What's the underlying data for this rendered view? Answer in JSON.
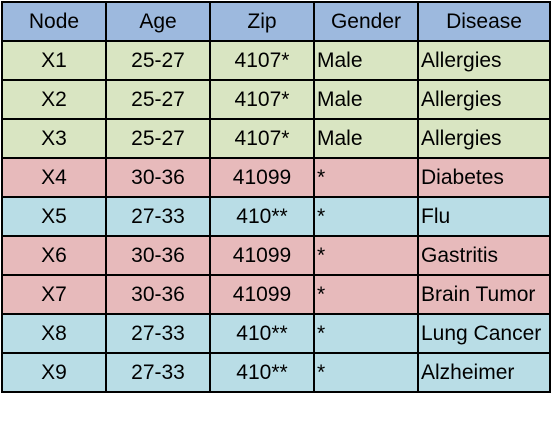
{
  "table": {
    "header_color": "#9db9de",
    "columns": [
      "Node",
      "Age",
      "Zip",
      "Gender",
      "Disease"
    ],
    "rows": [
      {
        "node": "X1",
        "age": "25-27",
        "zip": "4107*",
        "gender": "Male",
        "disease": "Allergies",
        "group": "green"
      },
      {
        "node": "X2",
        "age": "25-27",
        "zip": "4107*",
        "gender": "Male",
        "disease": "Allergies",
        "group": "green"
      },
      {
        "node": "X3",
        "age": "25-27",
        "zip": "4107*",
        "gender": "Male",
        "disease": "Allergies",
        "group": "green"
      },
      {
        "node": "X4",
        "age": "30-36",
        "zip": "41099",
        "gender": "*",
        "disease": "Diabetes",
        "group": "red"
      },
      {
        "node": "X5",
        "age": "27-33",
        "zip": "410**",
        "gender": "*",
        "disease": "Flu",
        "group": "blue"
      },
      {
        "node": "X6",
        "age": "30-36",
        "zip": "41099",
        "gender": "*",
        "disease": "Gastritis",
        "group": "red"
      },
      {
        "node": "X7",
        "age": "30-36",
        "zip": "41099",
        "gender": "*",
        "disease": "Brain Tumor",
        "group": "red"
      },
      {
        "node": "X8",
        "age": "27-33",
        "zip": "410**",
        "gender": "*",
        "disease": "Lung Cancer",
        "group": "blue"
      },
      {
        "node": "X9",
        "age": "27-33",
        "zip": "410**",
        "gender": "*",
        "disease": "Alzheimer",
        "group": "blue"
      }
    ],
    "group_colors": {
      "green": "#d9e5c2",
      "red": "#e7babb",
      "blue": "#b9dde6"
    }
  }
}
